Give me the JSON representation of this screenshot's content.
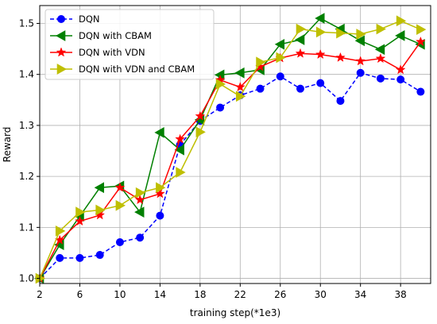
{
  "chart_data": {
    "type": "line",
    "title": "",
    "xlabel": "training step(*1e3)",
    "ylabel": "Reward",
    "xlim": [
      2,
      41
    ],
    "ylim": [
      0.99,
      1.535
    ],
    "xticks": [
      2,
      6,
      10,
      14,
      18,
      22,
      26,
      30,
      34,
      38
    ],
    "yticks": [
      1.0,
      1.1,
      1.2,
      1.3,
      1.4,
      1.5
    ],
    "ytick_labels": [
      "1.0",
      "1.1",
      "1.2",
      "1.3",
      "1.4",
      "1.5"
    ],
    "grid": true,
    "legend_position": "top-left",
    "x": [
      2,
      4,
      6,
      8,
      10,
      12,
      14,
      16,
      18,
      20,
      22,
      24,
      26,
      28,
      30,
      32,
      34,
      36,
      38,
      40
    ],
    "series": [
      {
        "name": "DQN",
        "color": "#0000ff",
        "marker": "circle",
        "linestyle": "dashed",
        "values": [
          1.0,
          1.04,
          1.04,
          1.046,
          1.071,
          1.08,
          1.123,
          1.262,
          1.309,
          1.335,
          1.359,
          1.372,
          1.396,
          1.372,
          1.383,
          1.348,
          1.403,
          1.392,
          1.39,
          1.366
        ]
      },
      {
        "name": "DQN with CBAM",
        "color": "#008000",
        "marker": "triangle-left",
        "linestyle": "solid",
        "values": [
          1.0,
          1.066,
          1.122,
          1.178,
          1.181,
          1.13,
          1.286,
          1.252,
          1.311,
          1.399,
          1.403,
          1.409,
          1.459,
          1.468,
          1.51,
          1.489,
          1.466,
          1.449,
          1.476,
          1.459
        ]
      },
      {
        "name": "DQN with VDN",
        "color": "#ff0000",
        "marker": "star",
        "linestyle": "solid",
        "values": [
          1.0,
          1.075,
          1.112,
          1.124,
          1.178,
          1.154,
          1.166,
          1.273,
          1.318,
          1.389,
          1.375,
          1.415,
          1.432,
          1.441,
          1.439,
          1.433,
          1.426,
          1.431,
          1.409,
          1.464
        ]
      },
      {
        "name": "DQN with  VDN and CBAM",
        "color": "#bfbf00",
        "marker": "triangle-right",
        "linestyle": "solid",
        "values": [
          1.0,
          1.093,
          1.13,
          1.134,
          1.143,
          1.168,
          1.178,
          1.208,
          1.287,
          1.381,
          1.357,
          1.424,
          1.433,
          1.489,
          1.483,
          1.481,
          1.479,
          1.489,
          1.505,
          1.488
        ]
      }
    ]
  }
}
